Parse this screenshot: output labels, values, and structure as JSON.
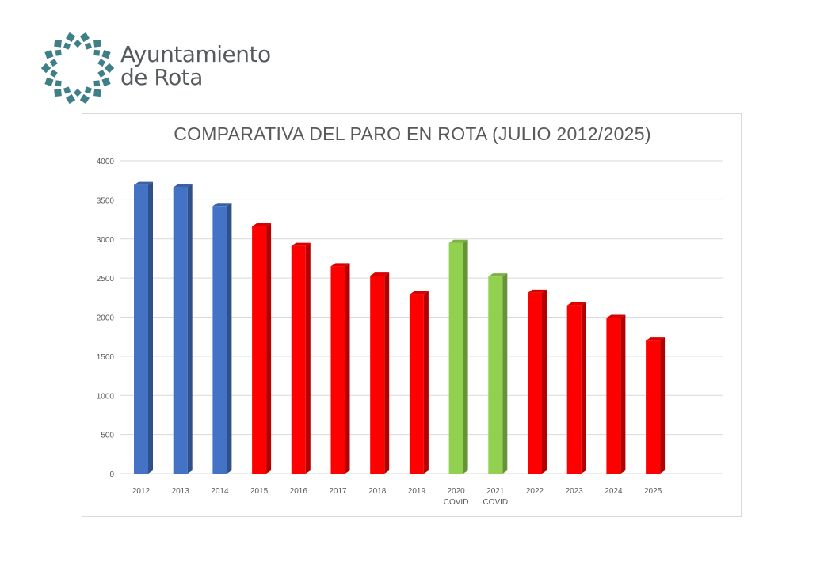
{
  "logo": {
    "line1": "Ayuntamiento",
    "line2": "de Rota",
    "color": "#3f7f88"
  },
  "chart_data": {
    "type": "bar",
    "title": "COMPARATIVA DEL PARO EN ROTA (JULIO 2012/2025)",
    "categories": [
      "2012",
      "2013",
      "2014",
      "2015",
      "2016",
      "2017",
      "2018",
      "2019",
      "2020\nCOVID",
      "2021\nCOVID",
      "2022",
      "2023",
      "2024",
      "2025"
    ],
    "values": [
      3690,
      3660,
      3420,
      3160,
      2910,
      2650,
      2530,
      2290,
      2950,
      2520,
      2310,
      2150,
      1990,
      1700
    ],
    "bar_colors": [
      "#4472c4",
      "#4472c4",
      "#4472c4",
      "#ff0000",
      "#ff0000",
      "#ff0000",
      "#ff0000",
      "#ff0000",
      "#92d050",
      "#92d050",
      "#ff0000",
      "#ff0000",
      "#ff0000",
      "#ff0000"
    ],
    "yticks": [
      "0",
      "500",
      "1000",
      "1500",
      "2000",
      "2500",
      "3000",
      "3500",
      "4000"
    ],
    "ylim": [
      0,
      4000
    ],
    "grid": true,
    "legend": "none"
  }
}
